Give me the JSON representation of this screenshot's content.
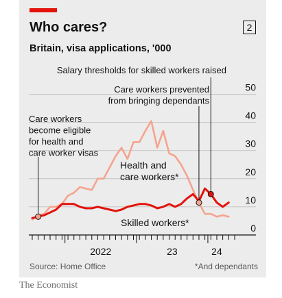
{
  "header": {
    "title": "Who cares?",
    "badge": "2",
    "subtitle": "Britain, visa applications, '000"
  },
  "footer": {
    "source": "Source: Home Office",
    "note": "*And dependants"
  },
  "brand": "The Economist",
  "colors": {
    "accent": "#e3120b",
    "health": "#f4a48f",
    "skilled": "#e3120b",
    "background": "#ececec"
  },
  "chart_data": {
    "type": "line",
    "title": "Who cares?",
    "subtitle": "Britain, visa applications, '000",
    "ylim": [
      0,
      55
    ],
    "yticks": [
      0,
      10,
      20,
      30,
      40,
      50
    ],
    "xlabel": "",
    "ylabel": "",
    "x": [
      "2021-07",
      "2021-08",
      "2021-09",
      "2021-10",
      "2021-11",
      "2021-12",
      "2022-01",
      "2022-02",
      "2022-03",
      "2022-04",
      "2022-05",
      "2022-06",
      "2022-07",
      "2022-08",
      "2022-09",
      "2022-10",
      "2022-11",
      "2022-12",
      "2023-01",
      "2023-02",
      "2023-03",
      "2023-04",
      "2023-05",
      "2023-06",
      "2023-07",
      "2023-08",
      "2023-09",
      "2023-10",
      "2023-11",
      "2023-12",
      "2024-01",
      "2024-02",
      "2024-03",
      "2024-04",
      "2024-05"
    ],
    "xtick_labels": [
      {
        "x": "2022-01",
        "label": "2022"
      },
      {
        "x": "2023-01",
        "label": "23"
      },
      {
        "x": "2024-01",
        "label": "24"
      }
    ],
    "grid": true,
    "series": [
      {
        "name": "Health and care workers*",
        "label_lines": [
          "Health and",
          "care workers*"
        ],
        "values": [
          5.5,
          7,
          7.5,
          10,
          10,
          11,
          14,
          15,
          17,
          16.5,
          16,
          20,
          20,
          24,
          28,
          31,
          27,
          33,
          33,
          37,
          40.5,
          31,
          37,
          29,
          28,
          25,
          21,
          16,
          11.5,
          7.5,
          7.5,
          6.5,
          7,
          6.5,
          null
        ]
      },
      {
        "name": "Skilled workers*",
        "label_lines": [
          "Skilled workers*"
        ],
        "values": [
          6,
          6.5,
          7,
          8,
          9,
          11,
          11,
          11,
          10,
          9.5,
          9.5,
          10,
          9.5,
          9,
          8.5,
          9,
          10,
          10.5,
          11,
          11,
          10.5,
          9.5,
          10,
          11,
          10,
          11,
          13,
          14.5,
          12,
          16.5,
          14.5,
          11.5,
          10,
          11.5,
          null
        ]
      }
    ],
    "annotations": [
      {
        "label_lines": [
          "Care workers",
          "become eligible",
          "for health and",
          "care worker visas"
        ],
        "x": "2021-08",
        "series": 1
      },
      {
        "label_lines": [
          "Care workers prevented",
          "from bringing dependants"
        ],
        "x": "2023-11",
        "series": 0
      },
      {
        "label_lines": [
          "Salary thresholds for skilled workers raised"
        ],
        "x": "2024-01",
        "series": 1
      }
    ]
  }
}
